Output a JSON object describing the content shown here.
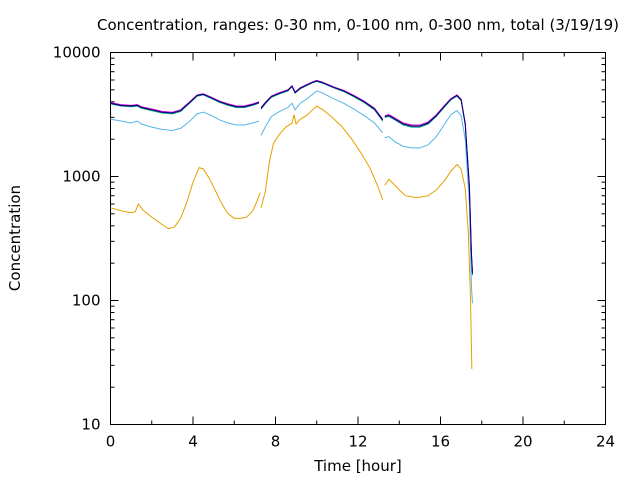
{
  "chart_data": {
    "type": "line",
    "title": "Concentration, ranges: 0-30 nm, 0-100 nm, 0-300 nm, total (3/19/19)",
    "xlabel": "Time [hour]",
    "ylabel": "Concentration",
    "x_ticks": [
      "0",
      "4",
      "8",
      "12",
      "16",
      "20",
      "24"
    ],
    "y_ticks": [
      "10",
      "100",
      "1000",
      "10000"
    ],
    "xlim": [
      0,
      24
    ],
    "ylim": [
      10,
      10000
    ],
    "y_scale": "log",
    "grid": false,
    "legend": "none",
    "series": [
      {
        "color": "#e69f00",
        "segments": [
          [
            [
              0,
              560
            ],
            [
              0.5,
              530
            ],
            [
              1,
              510
            ],
            [
              1.2,
              520
            ],
            [
              1.35,
              600
            ],
            [
              1.6,
              530
            ],
            [
              2,
              470
            ],
            [
              2.5,
              410
            ],
            [
              2.8,
              380
            ],
            [
              3.1,
              390
            ],
            [
              3.4,
              460
            ],
            [
              3.7,
              620
            ],
            [
              4,
              900
            ],
            [
              4.3,
              1180
            ],
            [
              4.5,
              1150
            ],
            [
              4.8,
              960
            ],
            [
              5.1,
              760
            ],
            [
              5.4,
              600
            ],
            [
              5.7,
              500
            ],
            [
              6,
              460
            ],
            [
              6.3,
              460
            ],
            [
              6.6,
              470
            ],
            [
              6.9,
              530
            ],
            [
              7.1,
              630
            ],
            [
              7.25,
              740
            ]
          ],
          [
            [
              7.3,
              560
            ],
            [
              7.5,
              750
            ],
            [
              7.7,
              1300
            ],
            [
              7.9,
              1850
            ],
            [
              8.2,
              2200
            ],
            [
              8.5,
              2500
            ],
            [
              8.8,
              2700
            ],
            [
              8.9,
              3150
            ],
            [
              9,
              2650
            ],
            [
              9.2,
              2900
            ],
            [
              9.5,
              3100
            ],
            [
              9.8,
              3450
            ],
            [
              10,
              3700
            ],
            [
              10.3,
              3450
            ],
            [
              10.7,
              3050
            ],
            [
              11.2,
              2550
            ],
            [
              11.7,
              2000
            ],
            [
              12.2,
              1500
            ],
            [
              12.6,
              1150
            ],
            [
              12.9,
              880
            ],
            [
              13.2,
              650
            ]
          ],
          [
            [
              13.3,
              850
            ],
            [
              13.5,
              950
            ],
            [
              13.7,
              880
            ],
            [
              14,
              780
            ],
            [
              14.3,
              700
            ],
            [
              14.7,
              680
            ],
            [
              15,
              680
            ],
            [
              15.4,
              700
            ],
            [
              15.8,
              780
            ],
            [
              16.2,
              930
            ],
            [
              16.5,
              1100
            ],
            [
              16.8,
              1250
            ],
            [
              17.0,
              1150
            ],
            [
              17.2,
              800
            ],
            [
              17.35,
              350
            ],
            [
              17.45,
              110
            ],
            [
              17.52,
              28
            ]
          ]
        ]
      },
      {
        "color": "#56b4e9",
        "segments": [
          [
            [
              0,
              2900
            ],
            [
              0.5,
              2800
            ],
            [
              1,
              2700
            ],
            [
              1.3,
              2800
            ],
            [
              1.5,
              2650
            ],
            [
              2,
              2500
            ],
            [
              2.5,
              2400
            ],
            [
              3,
              2350
            ],
            [
              3.4,
              2450
            ],
            [
              3.8,
              2750
            ],
            [
              4.2,
              3200
            ],
            [
              4.5,
              3300
            ],
            [
              4.9,
              3100
            ],
            [
              5.3,
              2850
            ],
            [
              5.7,
              2700
            ],
            [
              6.1,
              2600
            ],
            [
              6.5,
              2600
            ],
            [
              6.9,
              2700
            ],
            [
              7.2,
              2800
            ]
          ],
          [
            [
              7.3,
              2150
            ],
            [
              7.5,
              2500
            ],
            [
              7.8,
              3050
            ],
            [
              8.2,
              3350
            ],
            [
              8.6,
              3600
            ],
            [
              8.8,
              3900
            ],
            [
              8.95,
              3450
            ],
            [
              9.2,
              3900
            ],
            [
              9.5,
              4200
            ],
            [
              9.8,
              4600
            ],
            [
              10,
              4900
            ],
            [
              10.3,
              4700
            ],
            [
              10.8,
              4250
            ],
            [
              11.3,
              3900
            ],
            [
              11.8,
              3500
            ],
            [
              12.3,
              3100
            ],
            [
              12.8,
              2700
            ],
            [
              13.2,
              2250
            ]
          ],
          [
            [
              13.3,
              2050
            ],
            [
              13.5,
              2100
            ],
            [
              13.8,
              1900
            ],
            [
              14.2,
              1750
            ],
            [
              14.6,
              1700
            ],
            [
              15,
              1700
            ],
            [
              15.4,
              1800
            ],
            [
              15.8,
              2100
            ],
            [
              16.2,
              2650
            ],
            [
              16.5,
              3150
            ],
            [
              16.8,
              3400
            ],
            [
              17.0,
              3100
            ],
            [
              17.2,
              2000
            ],
            [
              17.4,
              600
            ],
            [
              17.5,
              130
            ],
            [
              17.55,
              95
            ]
          ]
        ]
      },
      {
        "color": "#009e73",
        "segments": [
          [
            [
              0,
              3850
            ],
            [
              0.5,
              3700
            ],
            [
              1,
              3650
            ],
            [
              1.3,
              3700
            ],
            [
              1.5,
              3550
            ],
            [
              2,
              3400
            ],
            [
              2.5,
              3250
            ],
            [
              3,
              3200
            ],
            [
              3.4,
              3350
            ],
            [
              3.8,
              3850
            ],
            [
              4.2,
              4450
            ],
            [
              4.5,
              4550
            ],
            [
              4.9,
              4250
            ],
            [
              5.3,
              3950
            ],
            [
              5.7,
              3750
            ],
            [
              6.1,
              3600
            ],
            [
              6.5,
              3600
            ],
            [
              6.9,
              3750
            ],
            [
              7.2,
              3900
            ]
          ],
          [
            [
              7.3,
              3500
            ],
            [
              7.5,
              3850
            ],
            [
              7.8,
              4350
            ],
            [
              8.2,
              4650
            ],
            [
              8.6,
              4900
            ],
            [
              8.8,
              5300
            ],
            [
              8.95,
              4700
            ],
            [
              9.2,
              5100
            ],
            [
              9.5,
              5400
            ],
            [
              9.8,
              5700
            ],
            [
              10,
              5850
            ],
            [
              10.3,
              5650
            ],
            [
              10.8,
              5200
            ],
            [
              11.3,
              4850
            ],
            [
              11.8,
              4400
            ],
            [
              12.3,
              3950
            ],
            [
              12.8,
              3450
            ],
            [
              13.2,
              2800
            ]
          ],
          [
            [
              13.3,
              3000
            ],
            [
              13.5,
              3050
            ],
            [
              13.8,
              2850
            ],
            [
              14.2,
              2600
            ],
            [
              14.6,
              2500
            ],
            [
              15,
              2500
            ],
            [
              15.4,
              2650
            ],
            [
              15.8,
              3050
            ],
            [
              16.2,
              3650
            ],
            [
              16.5,
              4150
            ],
            [
              16.8,
              4450
            ],
            [
              17.0,
              4100
            ],
            [
              17.2,
              2600
            ],
            [
              17.4,
              800
            ],
            [
              17.5,
              230
            ],
            [
              17.55,
              160
            ]
          ]
        ]
      },
      {
        "color": "#cc00cc",
        "segments": [
          [
            [
              0,
              3950
            ],
            [
              0.5,
              3800
            ],
            [
              1,
              3750
            ],
            [
              1.3,
              3800
            ],
            [
              1.5,
              3650
            ],
            [
              2,
              3500
            ],
            [
              2.5,
              3350
            ],
            [
              3,
              3300
            ],
            [
              3.4,
              3450
            ],
            [
              3.8,
              3950
            ],
            [
              4.2,
              4550
            ],
            [
              4.5,
              4650
            ],
            [
              4.9,
              4350
            ],
            [
              5.3,
              4050
            ],
            [
              5.7,
              3850
            ],
            [
              6.1,
              3700
            ],
            [
              6.5,
              3700
            ],
            [
              6.9,
              3850
            ],
            [
              7.2,
              4000
            ]
          ],
          [
            [
              7.3,
              3600
            ],
            [
              7.5,
              3950
            ],
            [
              7.8,
              4450
            ],
            [
              8.2,
              4750
            ],
            [
              8.6,
              5000
            ],
            [
              8.8,
              5400
            ],
            [
              8.95,
              4800
            ],
            [
              9.2,
              5200
            ],
            [
              9.5,
              5500
            ],
            [
              9.8,
              5800
            ],
            [
              10,
              5950
            ],
            [
              10.3,
              5750
            ],
            [
              10.8,
              5300
            ],
            [
              11.3,
              4950
            ],
            [
              11.8,
              4500
            ],
            [
              12.3,
              4050
            ],
            [
              12.8,
              3550
            ],
            [
              13.2,
              2900
            ]
          ],
          [
            [
              13.3,
              3100
            ],
            [
              13.5,
              3150
            ],
            [
              13.8,
              2950
            ],
            [
              14.2,
              2700
            ],
            [
              14.6,
              2600
            ],
            [
              15,
              2600
            ],
            [
              15.4,
              2750
            ],
            [
              15.8,
              3150
            ],
            [
              16.2,
              3750
            ],
            [
              16.5,
              4250
            ],
            [
              16.8,
              4550
            ],
            [
              17.0,
              4200
            ],
            [
              17.2,
              2700
            ],
            [
              17.4,
              850
            ],
            [
              17.5,
              240
            ],
            [
              17.55,
              170
            ]
          ]
        ]
      },
      {
        "color": "#000080",
        "segments": [
          [
            [
              0,
              3900
            ],
            [
              0.5,
              3750
            ],
            [
              1,
              3700
            ],
            [
              1.3,
              3750
            ],
            [
              1.5,
              3600
            ],
            [
              2,
              3450
            ],
            [
              2.5,
              3300
            ],
            [
              3,
              3250
            ],
            [
              3.4,
              3400
            ],
            [
              3.8,
              3900
            ],
            [
              4.2,
              4500
            ],
            [
              4.5,
              4600
            ],
            [
              4.9,
              4300
            ],
            [
              5.3,
              4000
            ],
            [
              5.7,
              3800
            ],
            [
              6.1,
              3650
            ],
            [
              6.5,
              3650
            ],
            [
              6.9,
              3800
            ],
            [
              7.2,
              3950
            ]
          ],
          [
            [
              7.3,
              3550
            ],
            [
              7.5,
              3900
            ],
            [
              7.8,
              4400
            ],
            [
              8.2,
              4700
            ],
            [
              8.6,
              4950
            ],
            [
              8.8,
              5350
            ],
            [
              8.95,
              4750
            ],
            [
              9.2,
              5150
            ],
            [
              9.5,
              5450
            ],
            [
              9.8,
              5750
            ],
            [
              10,
              5900
            ],
            [
              10.3,
              5700
            ],
            [
              10.8,
              5250
            ],
            [
              11.3,
              4900
            ],
            [
              11.8,
              4450
            ],
            [
              12.3,
              4000
            ],
            [
              12.8,
              3500
            ],
            [
              13.2,
              2850
            ]
          ],
          [
            [
              13.3,
              3050
            ],
            [
              13.5,
              3100
            ],
            [
              13.8,
              2900
            ],
            [
              14.2,
              2650
            ],
            [
              14.6,
              2550
            ],
            [
              15,
              2550
            ],
            [
              15.4,
              2700
            ],
            [
              15.8,
              3100
            ],
            [
              16.2,
              3700
            ],
            [
              16.5,
              4200
            ],
            [
              16.8,
              4500
            ],
            [
              17.0,
              4150
            ],
            [
              17.2,
              2650
            ],
            [
              17.4,
              820
            ],
            [
              17.5,
              235
            ],
            [
              17.55,
              165
            ]
          ]
        ]
      }
    ]
  }
}
